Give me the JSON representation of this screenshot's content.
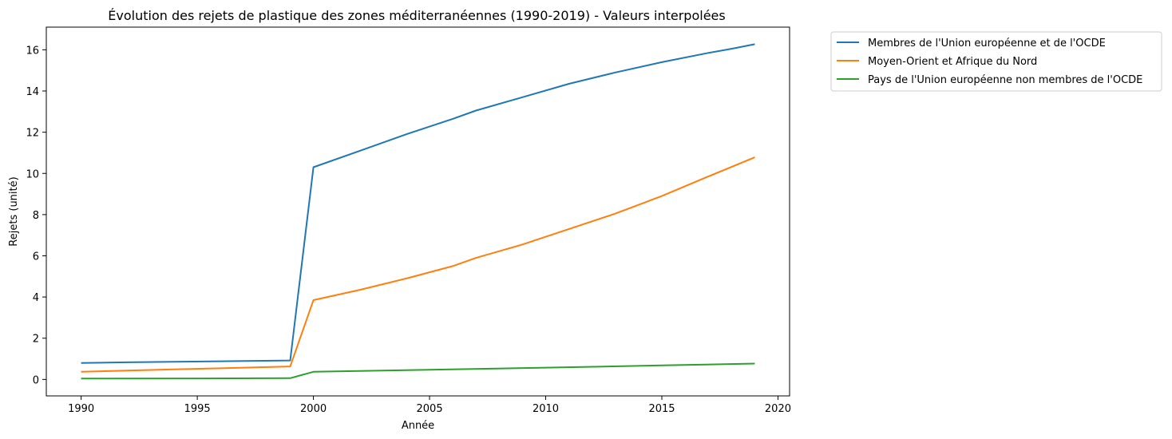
{
  "chart_data": {
    "type": "line",
    "title": "Évolution des rejets de plastique des zones méditerranéennes (1990-2019) - Valeurs interpolées",
    "xlabel": "Année",
    "ylabel": "Rejets (unité)",
    "xlim": [
      1988.5,
      2020.5
    ],
    "ylim": [
      -0.8,
      17.1
    ],
    "xticks": [
      1990,
      1995,
      2000,
      2005,
      2010,
      2015,
      2020
    ],
    "yticks": [
      0,
      2,
      4,
      6,
      8,
      10,
      12,
      14,
      16
    ],
    "grid": false,
    "legend_position": "outside-top-right",
    "series": [
      {
        "name": "Membres de l'Union européenne et de l'OCDE",
        "color": "#1f77b4",
        "x": [
          1990,
          1992,
          1994,
          1996,
          1999,
          2000,
          2002,
          2004,
          2006,
          2007,
          2009,
          2011,
          2013,
          2015,
          2017,
          2018,
          2019
        ],
        "y": [
          0.8,
          0.83,
          0.86,
          0.88,
          0.92,
          10.3,
          11.1,
          11.9,
          12.65,
          13.05,
          13.7,
          14.35,
          14.9,
          15.4,
          15.85,
          16.05,
          16.27
        ]
      },
      {
        "name": "Moyen-Orient et Afrique du Nord",
        "color": "#ff7f0e",
        "x": [
          1990,
          1992,
          1994,
          1996,
          1999,
          2000,
          2002,
          2004,
          2006,
          2007,
          2009,
          2011,
          2013,
          2015,
          2017,
          2019
        ],
        "y": [
          0.37,
          0.43,
          0.49,
          0.54,
          0.63,
          3.85,
          4.35,
          4.9,
          5.5,
          5.9,
          6.55,
          7.3,
          8.05,
          8.9,
          9.85,
          10.78
        ]
      },
      {
        "name": "Pays de l'Union européenne non membres de l'OCDE",
        "color": "#2ca02c",
        "x": [
          1990,
          1995,
          1999,
          2000,
          2005,
          2010,
          2015,
          2019
        ],
        "y": [
          0.04,
          0.05,
          0.06,
          0.37,
          0.47,
          0.57,
          0.68,
          0.77
        ]
      }
    ]
  }
}
